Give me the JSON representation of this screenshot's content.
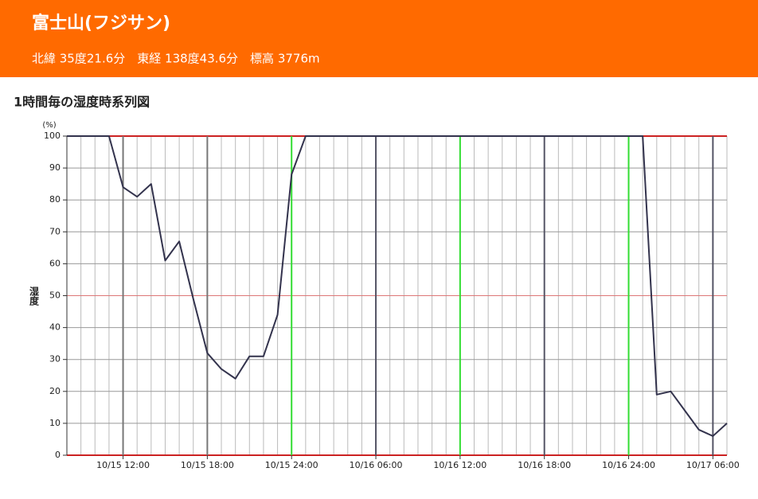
{
  "header": {
    "title": "富士山(フジサン)",
    "subtitle": "北緯 35度21.6分　東経 138度43.6分　標高 3776m"
  },
  "chart_data": {
    "type": "line",
    "title": "1時間毎の湿度時系列図",
    "ylabel": "湿度",
    "yunit": "(%)",
    "x": [
      "10/15 08:00",
      "10/15 09:00",
      "10/15 10:00",
      "10/15 11:00",
      "10/15 12:00",
      "10/15 13:00",
      "10/15 14:00",
      "10/15 15:00",
      "10/15 16:00",
      "10/15 17:00",
      "10/15 18:00",
      "10/15 19:00",
      "10/15 20:00",
      "10/15 21:00",
      "10/15 22:00",
      "10/15 23:00",
      "10/15 24:00",
      "10/16 01:00",
      "10/16 02:00",
      "10/16 03:00",
      "10/16 04:00",
      "10/16 05:00",
      "10/16 06:00",
      "10/16 07:00",
      "10/16 08:00",
      "10/16 09:00",
      "10/16 10:00",
      "10/16 11:00",
      "10/16 12:00",
      "10/16 13:00",
      "10/16 14:00",
      "10/16 15:00",
      "10/16 16:00",
      "10/16 17:00",
      "10/16 18:00",
      "10/16 19:00",
      "10/16 20:00",
      "10/16 21:00",
      "10/16 22:00",
      "10/16 23:00",
      "10/16 24:00",
      "10/17 01:00",
      "10/17 02:00",
      "10/17 03:00",
      "10/17 04:00",
      "10/17 05:00",
      "10/17 06:00",
      "10/17 07:00"
    ],
    "series": [
      {
        "name": "湿度",
        "color": "#33334d",
        "values": [
          100,
          100,
          100,
          100,
          84,
          81,
          85,
          61,
          67,
          49,
          32,
          27,
          24,
          31,
          31,
          44,
          88,
          100,
          100,
          100,
          100,
          100,
          100,
          100,
          100,
          100,
          100,
          100,
          100,
          100,
          100,
          100,
          100,
          100,
          100,
          100,
          100,
          100,
          100,
          100,
          100,
          100,
          19,
          20,
          14,
          8,
          6,
          10
        ]
      }
    ],
    "xlim": [
      "10/15 08:00",
      "10/17 07:00"
    ],
    "xticks": [
      "10/15 12:00",
      "10/15 18:00",
      "10/15 24:00",
      "10/16 06:00",
      "10/16 12:00",
      "10/16 18:00",
      "10/16 24:00",
      "10/17 06:00"
    ],
    "xtick_colors": [
      "#777777",
      "#777777",
      "#33dd33",
      "#555566",
      "#33dd33",
      "#555566",
      "#33dd33",
      "#555566"
    ],
    "ylim": [
      0,
      100
    ],
    "yticks": [
      0,
      10,
      20,
      30,
      40,
      50,
      60,
      70,
      80,
      90,
      100
    ],
    "ytick_colors": [
      "#cc2222",
      "#999999",
      "#999999",
      "#999999",
      "#999999",
      "#dd7777",
      "#999999",
      "#999999",
      "#999999",
      "#999999",
      "#cc2222"
    ],
    "grid": true
  }
}
